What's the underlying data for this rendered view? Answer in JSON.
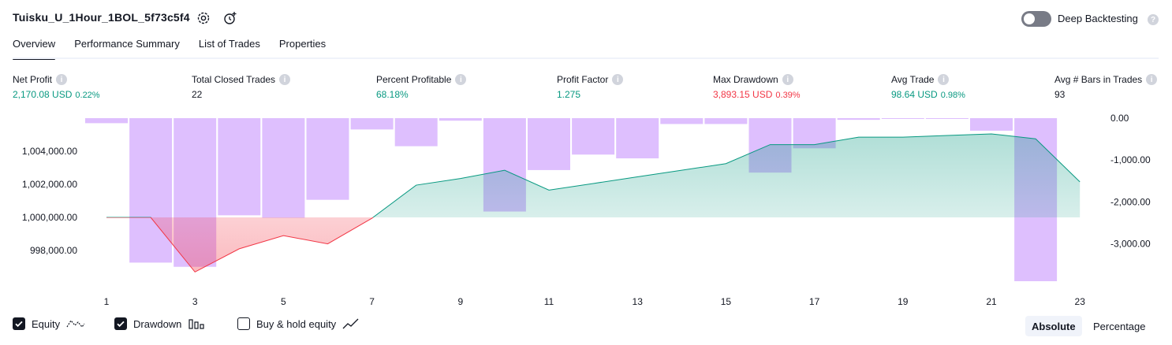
{
  "header": {
    "title": "Tuisku_U_1Hour_1BOL_5f73c5f4",
    "deep_backtesting_label": "Deep Backtesting",
    "deep_backtesting_enabled": false
  },
  "tabs": [
    {
      "label": "Overview",
      "active": true
    },
    {
      "label": "Performance Summary",
      "active": false
    },
    {
      "label": "List of Trades",
      "active": false
    },
    {
      "label": "Properties",
      "active": false
    }
  ],
  "metrics": [
    {
      "label": "Net Profit",
      "value": "2,170.08 USD",
      "pct": "0.22%",
      "color": "#089981"
    },
    {
      "label": "Total Closed Trades",
      "value": "22",
      "pct": "",
      "color": "#131722"
    },
    {
      "label": "Percent Profitable",
      "value": "68.18%",
      "pct": "",
      "color": "#089981"
    },
    {
      "label": "Profit Factor",
      "value": "1.275",
      "pct": "",
      "color": "#089981"
    },
    {
      "label": "Max Drawdown",
      "value": "3,893.15 USD",
      "pct": "0.39%",
      "color": "#f23645"
    },
    {
      "label": "Avg Trade",
      "value": "98.64 USD",
      "pct": "0.98%",
      "color": "#089981"
    },
    {
      "label": "Avg # Bars in Trades",
      "value": "93",
      "pct": "",
      "color": "#131722"
    }
  ],
  "colors": {
    "profit": "#089981",
    "loss": "#f23645",
    "drawdown_bar": "#d8b4fe",
    "accent": "#131722"
  },
  "chart_data": {
    "type": "line",
    "x": [
      1,
      2,
      3,
      4,
      5,
      6,
      7,
      8,
      9,
      10,
      11,
      12,
      13,
      14,
      15,
      16,
      17,
      18,
      19,
      20,
      21,
      22,
      23
    ],
    "xticks": [
      "1",
      "3",
      "5",
      "7",
      "9",
      "11",
      "13",
      "15",
      "17",
      "19",
      "21",
      "23"
    ],
    "baseline": 1000000,
    "series": [
      {
        "name": "Equity",
        "axis": "left",
        "values": [
          1000000,
          1000000,
          996700,
          998100,
          998900,
          998400,
          999950,
          1001950,
          1002350,
          1002850,
          1001650,
          1002050,
          1002450,
          1002850,
          1003250,
          1004400,
          1004400,
          1004850,
          1004850,
          1004950,
          1005050,
          1004750,
          1002150
        ]
      },
      {
        "name": "Drawdown",
        "axis": "right",
        "type": "bar",
        "values": [
          0,
          -120,
          -3450,
          -3550,
          -2320,
          -2380,
          -1950,
          -270,
          -670,
          -60,
          -2230,
          -1240,
          -870,
          -960,
          -140,
          -140,
          -1300,
          -720,
          -40,
          -10,
          0,
          -300,
          -3893.15
        ]
      }
    ],
    "yleft": {
      "ticks": [
        "1,004,000.00",
        "1,002,000.00",
        "1,000,000.00",
        "998,000.00"
      ],
      "tick_values": [
        1004000,
        1002000,
        1000000,
        998000
      ],
      "range": [
        996000,
        1006000
      ]
    },
    "yright": {
      "ticks": [
        "0.00",
        "-1,000.00",
        "-2,000.00",
        "-3,000.00"
      ],
      "tick_values": [
        0,
        -1000,
        -2000,
        -3000
      ],
      "range": [
        -3950,
        0
      ]
    }
  },
  "footer": {
    "equity": {
      "label": "Equity",
      "checked": true
    },
    "drawdown": {
      "label": "Drawdown",
      "checked": true
    },
    "buyhold": {
      "label": "Buy & hold equity",
      "checked": false
    },
    "absolute_label": "Absolute",
    "percentage_label": "Percentage"
  }
}
